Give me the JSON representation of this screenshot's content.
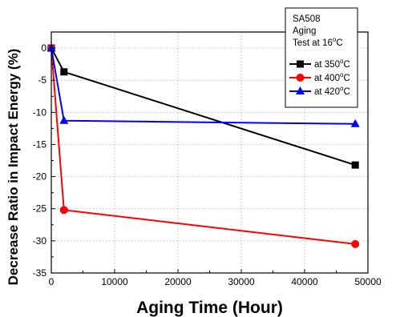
{
  "chart_data": {
    "type": "line",
    "title": "",
    "xlabel": "Aging Time (Hour)",
    "ylabel": "Decrease Ratio in Impact Energy (%)",
    "xlim": [
      0,
      50000
    ],
    "ylim": [
      -35,
      2.5
    ],
    "xticks": [
      0,
      10000,
      20000,
      30000,
      40000,
      50000
    ],
    "yticks": [
      0,
      -5,
      -10,
      -15,
      -20,
      -25,
      -30,
      -35
    ],
    "grid": true,
    "legend_placement": "top-right",
    "legend_title_lines": [
      "SA508",
      "Aging",
      "Test at 16"
    ],
    "legend_title_unit": "C",
    "series": [
      {
        "name": "at 350",
        "unit": "C",
        "color": "#000000",
        "marker": "square",
        "x": [
          0,
          2000,
          48000
        ],
        "y": [
          0,
          -3.7,
          -18.2
        ]
      },
      {
        "name": "at 400",
        "unit": "C",
        "color": "#ff0000",
        "marker": "circle",
        "x": [
          0,
          2000,
          48000
        ],
        "y": [
          0,
          -25.2,
          -30.5
        ]
      },
      {
        "name": "at 420",
        "unit": "C",
        "color": "#0000ff",
        "marker": "triangle",
        "x": [
          0,
          2000,
          48000
        ],
        "y": [
          0,
          -11.3,
          -11.8
        ]
      }
    ]
  }
}
